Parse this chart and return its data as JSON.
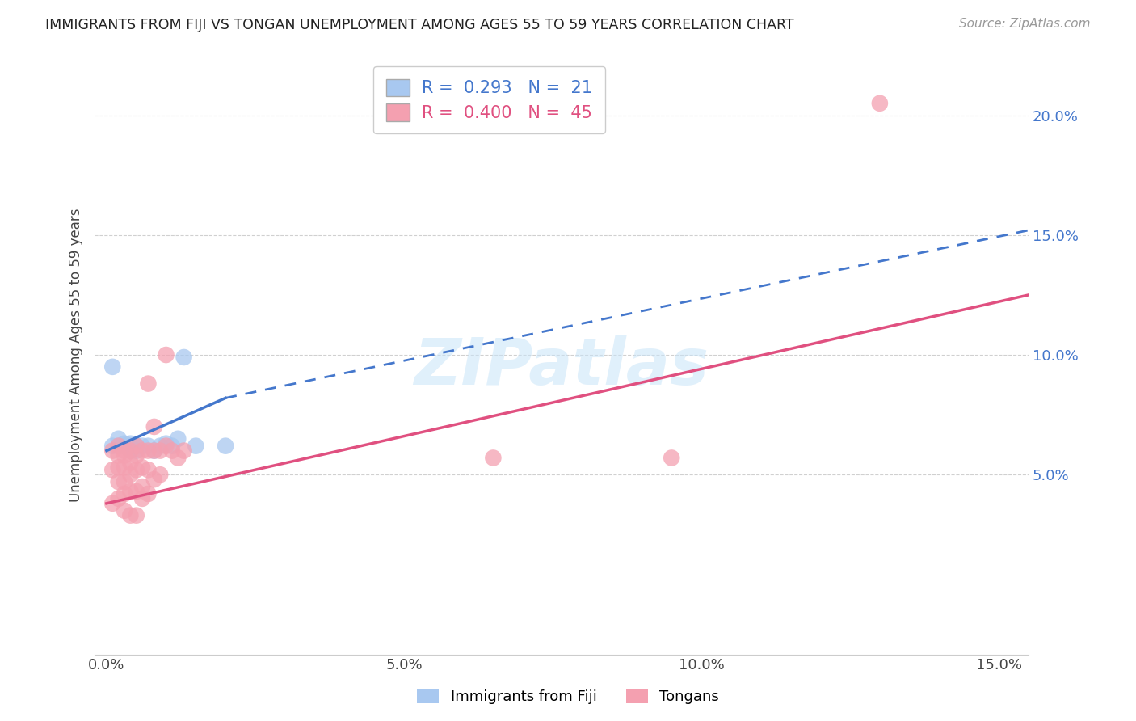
{
  "title": "IMMIGRANTS FROM FIJI VS TONGAN UNEMPLOYMENT AMONG AGES 55 TO 59 YEARS CORRELATION CHART",
  "source": "Source: ZipAtlas.com",
  "xlim": [
    -0.002,
    0.155
  ],
  "ylim": [
    -0.025,
    0.225
  ],
  "right_ytick_vals": [
    0.05,
    0.1,
    0.15,
    0.2
  ],
  "xtick_vals": [
    0.0,
    0.05,
    0.1,
    0.15
  ],
  "fiji_color": "#a8c8f0",
  "fiji_line_color": "#4477cc",
  "tongan_color": "#f4a0b0",
  "tongan_line_color": "#e05080",
  "fiji_R": 0.293,
  "fiji_N": 21,
  "tongan_R": 0.4,
  "tongan_N": 45,
  "legend_label_fiji": "Immigrants from Fiji",
  "legend_label_tongan": "Tongans",
  "ylabel": "Unemployment Among Ages 55 to 59 years",
  "watermark": "ZIPatlas",
  "fiji_line_x0": 0.0,
  "fiji_line_y0": 0.06,
  "fiji_line_x1": 0.02,
  "fiji_line_y1": 0.082,
  "fiji_line_dash_x1": 0.155,
  "fiji_line_dash_y1": 0.152,
  "tongan_line_x0": 0.0,
  "tongan_line_y0": 0.038,
  "tongan_line_x1": 0.155,
  "tongan_line_y1": 0.125,
  "fiji_points": [
    [
      0.001,
      0.095
    ],
    [
      0.001,
      0.062
    ],
    [
      0.002,
      0.065
    ],
    [
      0.002,
      0.062
    ],
    [
      0.003,
      0.063
    ],
    [
      0.003,
      0.062
    ],
    [
      0.004,
      0.063
    ],
    [
      0.004,
      0.062
    ],
    [
      0.004,
      0.06
    ],
    [
      0.005,
      0.062
    ],
    [
      0.005,
      0.06
    ],
    [
      0.006,
      0.062
    ],
    [
      0.007,
      0.062
    ],
    [
      0.008,
      0.06
    ],
    [
      0.009,
      0.062
    ],
    [
      0.01,
      0.063
    ],
    [
      0.011,
      0.062
    ],
    [
      0.012,
      0.065
    ],
    [
      0.013,
      0.099
    ],
    [
      0.015,
      0.062
    ],
    [
      0.02,
      0.062
    ]
  ],
  "tongan_points": [
    [
      0.001,
      0.06
    ],
    [
      0.001,
      0.052
    ],
    [
      0.001,
      0.038
    ],
    [
      0.002,
      0.062
    ],
    [
      0.002,
      0.058
    ],
    [
      0.002,
      0.053
    ],
    [
      0.002,
      0.047
    ],
    [
      0.002,
      0.04
    ],
    [
      0.003,
      0.06
    ],
    [
      0.003,
      0.058
    ],
    [
      0.003,
      0.053
    ],
    [
      0.003,
      0.047
    ],
    [
      0.003,
      0.042
    ],
    [
      0.003,
      0.035
    ],
    [
      0.004,
      0.06
    ],
    [
      0.004,
      0.055
    ],
    [
      0.004,
      0.05
    ],
    [
      0.004,
      0.043
    ],
    [
      0.004,
      0.033
    ],
    [
      0.005,
      0.062
    ],
    [
      0.005,
      0.058
    ],
    [
      0.005,
      0.052
    ],
    [
      0.005,
      0.043
    ],
    [
      0.005,
      0.033
    ],
    [
      0.006,
      0.06
    ],
    [
      0.006,
      0.053
    ],
    [
      0.006,
      0.045
    ],
    [
      0.006,
      0.04
    ],
    [
      0.007,
      0.088
    ],
    [
      0.007,
      0.06
    ],
    [
      0.007,
      0.052
    ],
    [
      0.007,
      0.042
    ],
    [
      0.008,
      0.07
    ],
    [
      0.008,
      0.06
    ],
    [
      0.008,
      0.048
    ],
    [
      0.009,
      0.06
    ],
    [
      0.009,
      0.05
    ],
    [
      0.01,
      0.1
    ],
    [
      0.01,
      0.062
    ],
    [
      0.011,
      0.06
    ],
    [
      0.012,
      0.057
    ],
    [
      0.013,
      0.06
    ],
    [
      0.065,
      0.057
    ],
    [
      0.095,
      0.057
    ],
    [
      0.13,
      0.205
    ]
  ]
}
